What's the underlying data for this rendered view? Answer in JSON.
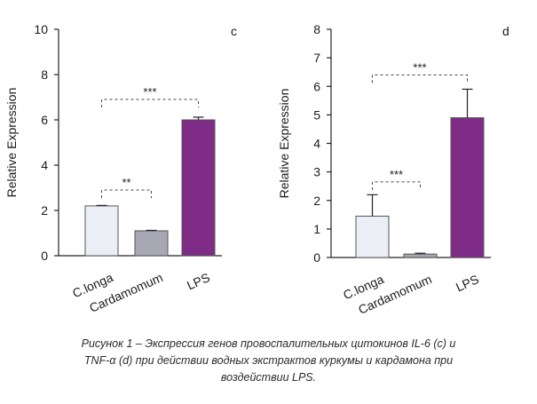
{
  "chart_data": [
    {
      "panel": "c",
      "type": "bar",
      "ylabel": "Relative Expression",
      "ylim": [
        0,
        10
      ],
      "yticks": [
        "0",
        "2",
        "4",
        "6",
        "8",
        "10"
      ],
      "categories": [
        "C.longa",
        "Cardamomum",
        "LPS"
      ],
      "values": [
        2.2,
        1.1,
        6.0
      ],
      "errors": [
        0.02,
        0.02,
        0.12
      ],
      "colors": [
        "#eceef6",
        "#a7a8b4",
        "#7e2c86"
      ],
      "significance": [
        {
          "from": 0,
          "to": 1,
          "label": "**",
          "level": 2.9
        },
        {
          "from": 0,
          "to": 2,
          "label": "***",
          "level": 6.9
        }
      ],
      "grid": false
    },
    {
      "panel": "d",
      "type": "bar",
      "ylabel": "Relative Expression",
      "ylim": [
        0,
        8
      ],
      "yticks": [
        "0",
        "1",
        "2",
        "3",
        "4",
        "5",
        "6",
        "7",
        "8"
      ],
      "categories": [
        "C.longa",
        "Cardamomum",
        "LPS"
      ],
      "values": [
        1.45,
        0.12,
        4.9
      ],
      "errors": [
        0.75,
        0.03,
        1.0
      ],
      "colors": [
        "#eceef6",
        "#a7a8b4",
        "#7e2c86"
      ],
      "significance": [
        {
          "from": 0,
          "to": 1,
          "label": "***",
          "level": 2.65
        },
        {
          "from": 0,
          "to": 2,
          "label": "***",
          "level": 6.4
        }
      ],
      "grid": false
    }
  ],
  "caption": {
    "line1": "Рисунок 1 – Экспрессия генов провоспалительных цитокинов IL-6 (c) и",
    "line2": "TNF-α (d) при действии водных экстрактов куркумы и кардамона при",
    "line3": "воздействии LPS."
  }
}
